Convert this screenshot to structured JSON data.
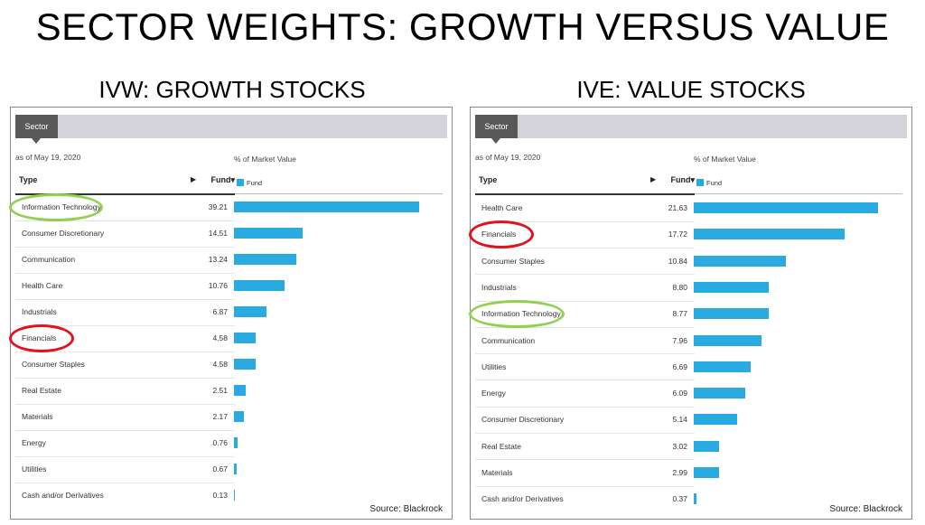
{
  "title": "SECTOR WEIGHTS: GROWTH VERSUS VALUE",
  "chart_data": [
    {
      "type": "bar",
      "title": "IVW: GROWTH STOCKS",
      "tab_label": "Sector",
      "as_of": "as of May 19, 2020",
      "value_header": "% of Market Value",
      "col_type": "Type",
      "col_fund": "Fund",
      "sort_arrow": "▶",
      "sort_indicator": "▾",
      "legend": "Fund",
      "source": "Source: Blackrock",
      "categories": [
        "Information Technology",
        "Consumer Discretionary",
        "Communication",
        "Health Care",
        "Industrials",
        "Financials",
        "Consumer Staples",
        "Real Estate",
        "Materials",
        "Energy",
        "Utilities",
        "Cash and/or Derivatives"
      ],
      "values": [
        39.21,
        14.51,
        13.24,
        10.76,
        6.87,
        4.58,
        4.58,
        2.51,
        2.17,
        0.76,
        0.67,
        0.13
      ],
      "value_labels": [
        "39.21",
        "14.51",
        "13.24",
        "10.76",
        "6.87",
        "4.58",
        "4.58",
        "2.51",
        "2.17",
        "0.76",
        "0.67",
        "0.13"
      ],
      "highlight_green": "Information Technology",
      "highlight_red": "Financials",
      "bar_color": "#29abe2"
    },
    {
      "type": "bar",
      "title": "IVE: VALUE STOCKS",
      "tab_label": "Sector",
      "as_of": "as of May 19, 2020",
      "value_header": "% of Market Value",
      "col_type": "Type",
      "col_fund": "Fund",
      "sort_arrow": "▶",
      "sort_indicator": "▾",
      "legend": "Fund",
      "source": "Source: Blackrock",
      "categories": [
        "Health Care",
        "Financials",
        "Consumer Staples",
        "Industrials",
        "Information Technology",
        "Communication",
        "Utilities",
        "Energy",
        "Consumer Discretionary",
        "Real Estate",
        "Materials",
        "Cash and/or Derivatives"
      ],
      "values": [
        21.63,
        17.72,
        10.84,
        8.8,
        8.77,
        7.96,
        6.69,
        6.09,
        5.14,
        3.02,
        2.99,
        0.37
      ],
      "value_labels": [
        "21.63",
        "17.72",
        "10.84",
        "8.80",
        "8.77",
        "7.96",
        "6.69",
        "6.09",
        "5.14",
        "3.02",
        "2.99",
        "0.37"
      ],
      "highlight_green": "Information Technology",
      "highlight_red": "Financials",
      "bar_color": "#29abe2"
    }
  ]
}
